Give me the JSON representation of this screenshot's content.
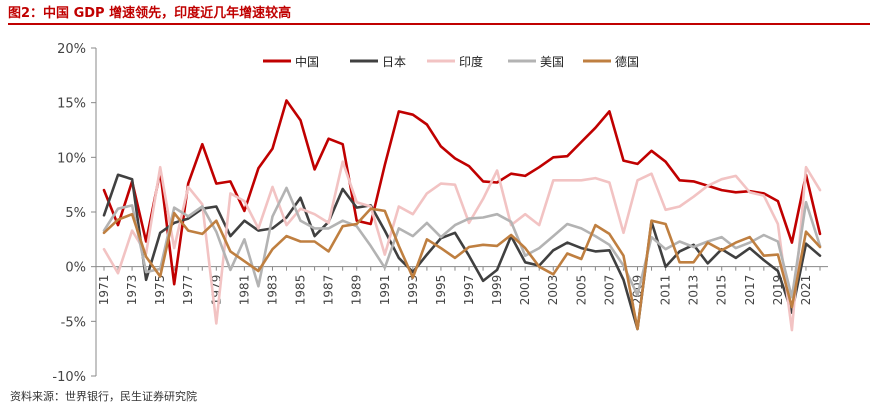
{
  "title": "图2：中国 GDP 增速领先，印度近几年增速较高",
  "source": "资料来源：世界银行，民生证券研究院",
  "chart_data": {
    "type": "line",
    "title": "中国 GDP 增速领先，印度近几年增速较高",
    "xlabel": "",
    "ylabel": "",
    "ylim": [
      -10,
      20
    ],
    "yticks": [
      -10,
      -5,
      0,
      5,
      10,
      15,
      20
    ],
    "ytick_labels": [
      "-10%",
      "-5%",
      "0%",
      "5%",
      "10%",
      "15%",
      "20%"
    ],
    "x": [
      1971,
      1972,
      1973,
      1974,
      1975,
      1976,
      1977,
      1978,
      1979,
      1980,
      1981,
      1982,
      1983,
      1984,
      1985,
      1986,
      1987,
      1988,
      1989,
      1990,
      1991,
      1992,
      1993,
      1994,
      1995,
      1996,
      1997,
      1998,
      1999,
      2000,
      2001,
      2002,
      2003,
      2004,
      2005,
      2006,
      2007,
      2008,
      2009,
      2010,
      2011,
      2012,
      2013,
      2014,
      2015,
      2016,
      2017,
      2018,
      2019,
      2020,
      2021,
      2022
    ],
    "xtick_labels": [
      "1971",
      "1973",
      "1975",
      "1977",
      "1979",
      "1981",
      "1983",
      "1985",
      "1987",
      "1989",
      "1991",
      "1993",
      "1995",
      "1997",
      "1999",
      "2001",
      "2003",
      "2005",
      "2007",
      "2009",
      "2011",
      "2013",
      "2015",
      "2017",
      "2019",
      "2021"
    ],
    "legend_position": "top",
    "series": [
      {
        "name": "中国",
        "color": "#c00000",
        "values": [
          7.0,
          3.8,
          7.8,
          2.3,
          8.7,
          -1.6,
          7.6,
          11.2,
          7.6,
          7.8,
          5.1,
          9.0,
          10.8,
          15.2,
          13.4,
          8.9,
          11.7,
          11.2,
          4.2,
          3.9,
          9.3,
          14.2,
          13.9,
          13.0,
          11.0,
          9.9,
          9.2,
          7.8,
          7.7,
          8.5,
          8.3,
          9.1,
          10.0,
          10.1,
          11.4,
          12.7,
          14.2,
          9.7,
          9.4,
          10.6,
          9.6,
          7.9,
          7.8,
          7.4,
          7.0,
          6.8,
          6.9,
          6.7,
          6.0,
          2.2,
          8.4,
          3.0
        ]
      },
      {
        "name": "日本",
        "color": "#404040",
        "values": [
          4.7,
          8.4,
          8.0,
          -1.2,
          3.1,
          4.0,
          4.4,
          5.3,
          5.5,
          2.8,
          4.2,
          3.3,
          3.5,
          4.5,
          6.3,
          2.8,
          4.1,
          7.1,
          5.4,
          5.6,
          3.3,
          0.8,
          -0.5,
          1.1,
          2.6,
          3.1,
          1.0,
          -1.3,
          -0.3,
          2.8,
          0.4,
          0.1,
          1.5,
          2.2,
          1.7,
          1.4,
          1.5,
          -1.2,
          -5.7,
          4.1,
          0.0,
          1.4,
          2.0,
          0.3,
          1.6,
          0.8,
          1.7,
          0.6,
          -0.4,
          -4.2,
          2.1,
          1.0
        ]
      },
      {
        "name": "印度",
        "color": "#f2c3c3",
        "values": [
          1.6,
          -0.6,
          3.3,
          1.2,
          9.1,
          1.7,
          7.3,
          5.7,
          -5.2,
          6.7,
          6.0,
          3.5,
          7.3,
          3.8,
          5.3,
          4.8,
          4.0,
          9.6,
          5.9,
          5.5,
          1.1,
          5.5,
          4.8,
          6.7,
          7.6,
          7.5,
          4.0,
          6.2,
          8.8,
          3.8,
          4.8,
          3.8,
          7.9,
          7.9,
          7.9,
          8.1,
          7.7,
          3.1,
          7.9,
          8.5,
          5.2,
          5.5,
          6.4,
          7.4,
          8.0,
          8.3,
          6.8,
          6.5,
          3.9,
          -5.8,
          9.1,
          7.0
        ]
      },
      {
        "name": "美国",
        "color": "#b3b3b3",
        "values": [
          3.3,
          5.3,
          5.6,
          -0.5,
          -0.2,
          5.4,
          4.6,
          5.5,
          3.2,
          -0.3,
          2.5,
          -1.8,
          4.6,
          7.2,
          4.2,
          3.5,
          3.5,
          4.2,
          3.7,
          1.9,
          -0.1,
          3.5,
          2.8,
          4.0,
          2.7,
          3.8,
          4.4,
          4.5,
          4.8,
          4.1,
          1.0,
          1.7,
          2.8,
          3.9,
          3.5,
          2.8,
          2.0,
          0.1,
          -2.6,
          2.7,
          1.6,
          2.3,
          1.8,
          2.3,
          2.7,
          1.7,
          2.2,
          2.9,
          2.3,
          -2.8,
          5.9,
          1.9
        ]
      },
      {
        "name": "德国",
        "color": "#bf7f40",
        "values": [
          3.1,
          4.3,
          4.8,
          0.9,
          -0.9,
          4.9,
          3.3,
          3.0,
          4.2,
          1.4,
          0.5,
          -0.4,
          1.6,
          2.8,
          2.3,
          2.3,
          1.4,
          3.7,
          3.9,
          5.3,
          5.1,
          1.9,
          -1.0,
          2.5,
          1.7,
          0.8,
          1.8,
          2.0,
          1.9,
          2.9,
          1.7,
          0.0,
          -0.7,
          1.2,
          0.7,
          3.8,
          3.0,
          1.0,
          -5.7,
          4.2,
          3.9,
          0.4,
          0.4,
          2.2,
          1.5,
          2.2,
          2.7,
          1.0,
          1.1,
          -3.7,
          3.2,
          1.8
        ]
      }
    ]
  }
}
